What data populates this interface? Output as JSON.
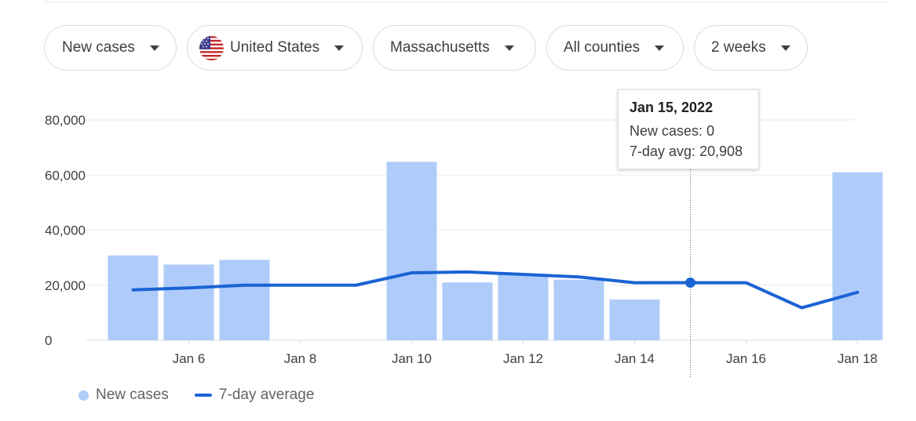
{
  "filters": [
    {
      "label": "New cases"
    },
    {
      "label": "United States",
      "icon": "us-flag-icon"
    },
    {
      "label": "Massachusetts"
    },
    {
      "label": "All counties"
    },
    {
      "label": "2 weeks"
    }
  ],
  "tooltip": {
    "date": "Jan 15, 2022",
    "cases_label": "New cases:",
    "cases_value": "0",
    "avg_label": "7-day avg:",
    "avg_value": "20,908"
  },
  "legend": {
    "bars_label": "New cases",
    "line_label": "7-day average"
  },
  "colors": {
    "bar": "#aecbfa",
    "line": "#1a63d4",
    "grid": "#e8eaed",
    "text": "#3c4043"
  },
  "chart_data": {
    "type": "bar",
    "x": [
      "Jan 5",
      "Jan 6",
      "Jan 7",
      "Jan 8",
      "Jan 9",
      "Jan 10",
      "Jan 11",
      "Jan 12",
      "Jan 13",
      "Jan 14",
      "Jan 15",
      "Jan 16",
      "Jan 17",
      "Jan 18"
    ],
    "x_tick_labels": [
      "Jan 6",
      "Jan 8",
      "Jan 10",
      "Jan 12",
      "Jan 14",
      "Jan 16",
      "Jan 18"
    ],
    "y_tick_labels": [
      "0",
      "20,000",
      "40,000",
      "60,000",
      "80,000"
    ],
    "ylim": [
      0,
      80000
    ],
    "series": [
      {
        "name": "New cases",
        "type": "bar",
        "values": [
          30800,
          27500,
          29200,
          0,
          0,
          64800,
          21000,
          24000,
          22000,
          14800,
          0,
          0,
          0,
          61000
        ]
      },
      {
        "name": "7-day average",
        "type": "line",
        "values": [
          18300,
          19000,
          20000,
          20000,
          20000,
          24500,
          24800,
          23900,
          23000,
          20900,
          20908,
          20900,
          11800,
          17400
        ]
      }
    ],
    "highlight_index": 10,
    "grid": true,
    "legend_position": "bottom-left"
  }
}
